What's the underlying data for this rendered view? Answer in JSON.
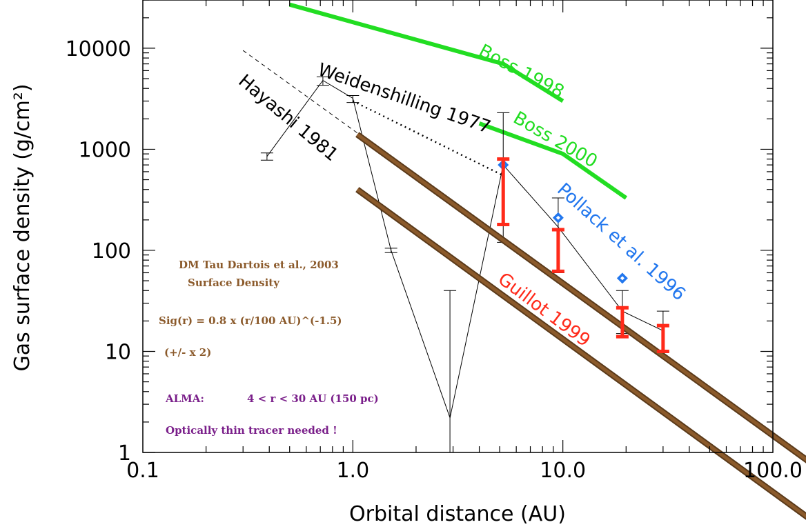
{
  "chart_data": {
    "type": "line",
    "xlabel": "Orbital distance (AU)",
    "ylabel": "Gas surface density (g/cm²)",
    "x_scale": "log",
    "y_scale": "log",
    "xlim": [
      0.1,
      100
    ],
    "ylim": [
      1,
      30000
    ],
    "x_tick_labels": [
      "0.1",
      "1.0",
      "10.0",
      "100.0"
    ],
    "y_tick_labels": [
      "1",
      "10",
      "100",
      "1000",
      "10000"
    ],
    "labels": {
      "boss1998": "Boss 1998",
      "boss2000": "Boss 2000",
      "weidenschilling": "Weidenshilling 1977",
      "hayashi": "Hayashi 1981",
      "pollack": "Pollack et al. 1996",
      "guillot": "Guillot 1999"
    },
    "colors": {
      "boss": "#22dd22",
      "pollack": "#2277ee",
      "guillot": "#ff2a1a",
      "dmtau": "#8b5a2b",
      "alma": "#7a1f8a",
      "black": "#000000"
    },
    "series": [
      {
        "name": "Boss 1998",
        "style": "thick-green",
        "points": [
          [
            0.5,
            27000
          ],
          [
            5.2,
            7000
          ],
          [
            10,
            3000
          ]
        ]
      },
      {
        "name": "Boss 2000",
        "style": "thick-green",
        "points": [
          [
            4,
            1800
          ],
          [
            10,
            900
          ],
          [
            20,
            330
          ]
        ]
      },
      {
        "name": "Weidenshilling 1977",
        "style": "dotted-black",
        "points": [
          [
            1.0,
            3000
          ],
          [
            5.2,
            550
          ]
        ]
      },
      {
        "name": "Hayashi 1981",
        "style": "dashed-black",
        "points": [
          [
            0.3,
            9500
          ],
          [
            30,
            9.5
          ]
        ]
      },
      {
        "name": "Weidenshilling 1977 data",
        "style": "thin-black-errorbars",
        "points": [
          {
            "x": 0.39,
            "y": 850,
            "lo": 780,
            "hi": 920
          },
          {
            "x": 0.72,
            "y": 4800,
            "lo": 4300,
            "hi": 5200
          },
          {
            "x": 1.0,
            "y": 3200,
            "lo": 2900,
            "hi": 3400
          },
          {
            "x": 1.52,
            "y": 100,
            "lo": 95,
            "hi": 105
          },
          {
            "x": 2.9,
            "y": 2.2,
            "lo": 0.5,
            "hi": 40
          },
          {
            "x": 5.2,
            "y": 700,
            "lo": 120,
            "hi": 2300
          },
          {
            "x": 9.5,
            "y": 170,
            "lo": 60,
            "hi": 330
          },
          {
            "x": 19.2,
            "y": 25,
            "lo": 15,
            "hi": 40
          },
          {
            "x": 30,
            "y": 16,
            "lo": 10,
            "hi": 25
          }
        ]
      },
      {
        "name": "Pollack et al. 1996",
        "style": "blue-diamonds",
        "points": [
          [
            5.2,
            700
          ],
          [
            9.5,
            210
          ],
          [
            19.2,
            53
          ]
        ]
      },
      {
        "name": "Guillot 1999",
        "style": "red-errorbars",
        "points": [
          {
            "x": 5.2,
            "lo": 180,
            "hi": 800
          },
          {
            "x": 9.5,
            "lo": 62,
            "hi": 160
          },
          {
            "x": 19.2,
            "lo": 14,
            "hi": 27
          },
          {
            "x": 30,
            "lo": 10,
            "hi": 18
          }
        ]
      },
      {
        "name": "DM Tau upper",
        "style": "thick-brown",
        "points": [
          [
            1.05,
            1400
          ],
          [
            150,
            0.8
          ]
        ]
      },
      {
        "name": "DM Tau lower",
        "style": "thick-brown",
        "points": [
          [
            1.05,
            400
          ],
          [
            150,
            0.22
          ]
        ]
      }
    ],
    "annotations": {
      "dmtau_title": "DM Tau  Dartois et al., 2003",
      "dmtau_sub": "Surface Density",
      "formula": "Sig(r) = 0.8 x (r/100 AU)^(-1.5)",
      "factor": "(+/- x 2)",
      "alma_label": "ALMA:",
      "alma_range": "4  <  r < 30 AU (150 pc)",
      "alma_note": "Optically thin tracer needed !"
    }
  }
}
